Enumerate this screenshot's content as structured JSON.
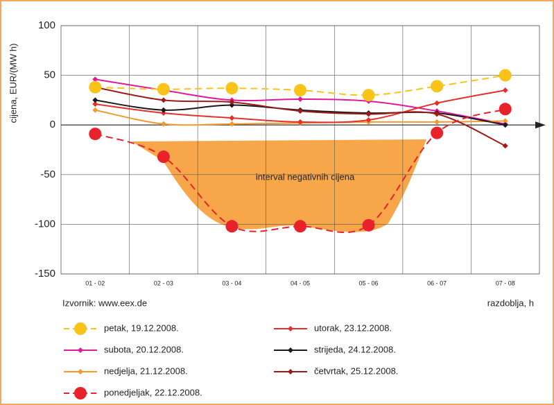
{
  "chart_data": {
    "type": "line",
    "ylabel": "cijena, EUR/(MW h)",
    "xlabel": "razdoblja, h",
    "source": "Izvornik: www.eex.de",
    "annotation": "interval negativnih cijena",
    "categories": [
      "01 - 02",
      "02 - 03",
      "03 - 04",
      "04 - 05",
      "05 - 06",
      "06 - 07",
      "07 - 08"
    ],
    "ylim": [
      -150,
      100
    ],
    "yticks": [
      {
        "value": -150,
        "label": "-150"
      },
      {
        "value": -100,
        "label": "-100"
      },
      {
        "value": -50,
        "label": "-50"
      },
      0,
      50,
      100
    ],
    "grid": true,
    "series": [
      {
        "name": "petak, 19.12.2008.",
        "color": "#f9c31a",
        "dashed": true,
        "marker": "circle",
        "values": [
          38,
          36,
          37,
          35,
          30,
          39,
          50
        ]
      },
      {
        "name": "subota, 20.12.2008.",
        "color": "#e0199a",
        "dashed": false,
        "marker": "diamond",
        "values": [
          46,
          35,
          25,
          26,
          24,
          14,
          1
        ]
      },
      {
        "name": "nedjelja, 21.12.2008.",
        "color": "#f39a2d",
        "dashed": false,
        "marker": "diamond",
        "values": [
          15,
          1,
          1,
          2,
          3,
          3,
          4
        ]
      },
      {
        "name": "ponedjeljak, 22.12.2008.",
        "color": "#e8212a",
        "dashed": true,
        "marker": "circle",
        "values": [
          -9,
          -32,
          -102,
          -102,
          -101,
          -8,
          16
        ]
      },
      {
        "name": "utorak, 23.12.2008.",
        "color": "#e5302a",
        "dashed": false,
        "marker": "diamond",
        "values": [
          21,
          12,
          7,
          3,
          5,
          22,
          35
        ]
      },
      {
        "name": "strijeda, 24.12.2008.",
        "color": "#1a1a1a",
        "dashed": false,
        "marker": "diamond",
        "values": [
          25,
          15,
          20,
          15,
          12,
          12,
          0
        ]
      },
      {
        "name": "četvrtak, 25.12.2008.",
        "color": "#a01a1a",
        "dashed": false,
        "marker": "diamond",
        "values": [
          38,
          25,
          23,
          14,
          11,
          11,
          -21
        ]
      }
    ]
  }
}
